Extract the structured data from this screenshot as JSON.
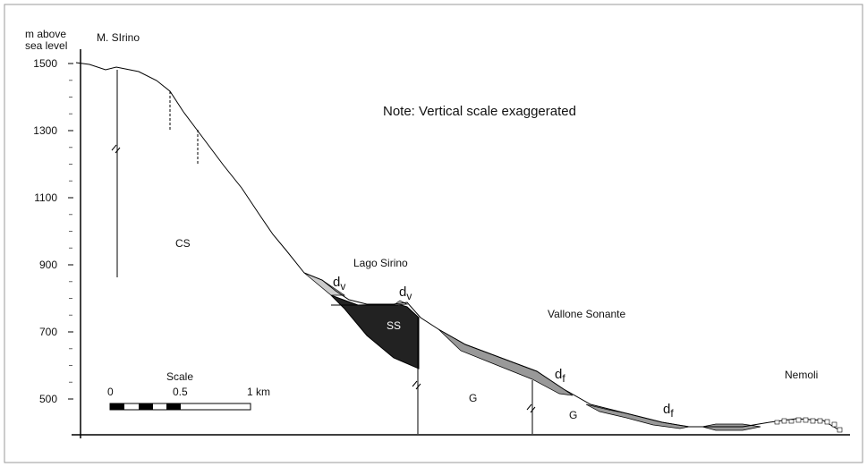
{
  "axis": {
    "label_lines": [
      "m above",
      "sea level"
    ],
    "ticks": [
      1500,
      1300,
      1100,
      900,
      700,
      500
    ]
  },
  "note": "Note: Vertical scale exaggerated",
  "places": {
    "summit": "M. SIrino",
    "lake": "Lago Sirino",
    "valley": "Vallone Sonante",
    "town": "Nemoli"
  },
  "units": {
    "cs": "CS",
    "ss": "SS",
    "g1": "G",
    "g2": "G"
  },
  "deposits": {
    "dv1": {
      "main": "d",
      "sub": "v"
    },
    "dv2": {
      "main": "d",
      "sub": "v"
    },
    "df1": {
      "main": "d",
      "sub": "f"
    },
    "df2": {
      "main": "d",
      "sub": "f"
    }
  },
  "scale": {
    "title": "Scale",
    "labels": [
      "0",
      "0.5",
      "1 km"
    ]
  }
}
